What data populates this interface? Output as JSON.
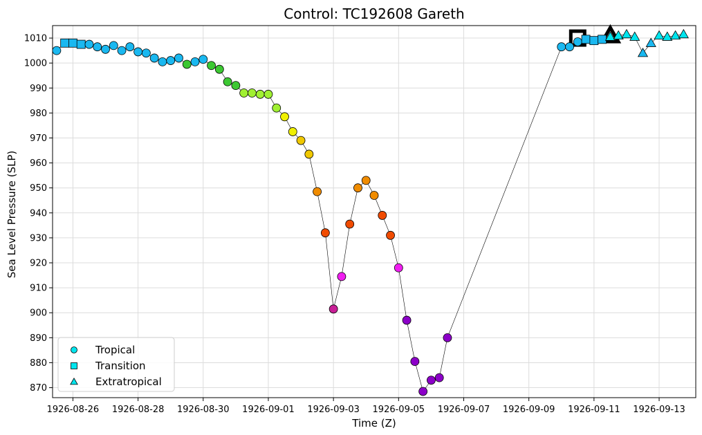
{
  "chart_data": {
    "type": "scatter",
    "title": "Control: TC192608 Gareth",
    "xlabel": "Time (Z)",
    "ylabel": "Sea Level Pressure (SLP)",
    "x_type": "date",
    "xlim": [
      "1926-08-25 09:00",
      "1926-09-14 03:00"
    ],
    "ylim": [
      866,
      1015
    ],
    "grid": true,
    "legend_position": "lower-left",
    "x_ticks": [
      "1926-08-26",
      "1926-08-28",
      "1926-08-30",
      "1926-09-01",
      "1926-09-03",
      "1926-09-05",
      "1926-09-07",
      "1926-09-09",
      "1926-09-11",
      "1926-09-13"
    ],
    "y_ticks": [
      870,
      880,
      890,
      900,
      910,
      920,
      930,
      940,
      950,
      960,
      970,
      980,
      990,
      1000,
      1010
    ],
    "legend": [
      {
        "label": "Tropical",
        "marker": "circle",
        "color": "#00e5ee"
      },
      {
        "label": "Transition",
        "marker": "square",
        "color": "#00e5ee"
      },
      {
        "label": "Extratropical",
        "marker": "triangle",
        "color": "#00e5ee"
      }
    ],
    "highlights": [
      {
        "x": "1926-09-10 12:00",
        "y": 1010,
        "marker": "square"
      },
      {
        "x": "1926-09-11 12:00",
        "y": 1011,
        "marker": "triangle"
      }
    ],
    "points": [
      {
        "x": "1926-08-25 12:00",
        "y": 1005,
        "marker": "circle",
        "color": "#1ab8f0"
      },
      {
        "x": "1926-08-25 18:00",
        "y": 1008,
        "marker": "square",
        "color": "#1ab8f0"
      },
      {
        "x": "1926-08-26 00:00",
        "y": 1008,
        "marker": "square",
        "color": "#1ab8f0"
      },
      {
        "x": "1926-08-26 06:00",
        "y": 1007.5,
        "marker": "square",
        "color": "#1ab8f0"
      },
      {
        "x": "1926-08-26 12:00",
        "y": 1007.5,
        "marker": "circle",
        "color": "#1ab8f0"
      },
      {
        "x": "1926-08-26 18:00",
        "y": 1006.5,
        "marker": "circle",
        "color": "#1ab8f0"
      },
      {
        "x": "1926-08-27 00:00",
        "y": 1005.5,
        "marker": "circle",
        "color": "#1ab8f0"
      },
      {
        "x": "1926-08-27 06:00",
        "y": 1007,
        "marker": "circle",
        "color": "#1ab8f0"
      },
      {
        "x": "1926-08-27 12:00",
        "y": 1005,
        "marker": "circle",
        "color": "#1ab8f0"
      },
      {
        "x": "1926-08-27 18:00",
        "y": 1006.5,
        "marker": "circle",
        "color": "#1ab8f0"
      },
      {
        "x": "1926-08-28 00:00",
        "y": 1004.5,
        "marker": "circle",
        "color": "#1ab8f0"
      },
      {
        "x": "1926-08-28 06:00",
        "y": 1004,
        "marker": "circle",
        "color": "#1ab8f0"
      },
      {
        "x": "1926-08-28 12:00",
        "y": 1002,
        "marker": "circle",
        "color": "#1ab8f0"
      },
      {
        "x": "1926-08-28 18:00",
        "y": 1000.5,
        "marker": "circle",
        "color": "#1ab8f0"
      },
      {
        "x": "1926-08-29 00:00",
        "y": 1001,
        "marker": "circle",
        "color": "#1ab8f0"
      },
      {
        "x": "1926-08-29 06:00",
        "y": 1002,
        "marker": "circle",
        "color": "#1ab8f0"
      },
      {
        "x": "1926-08-29 12:00",
        "y": 999.5,
        "marker": "circle",
        "color": "#3cc832"
      },
      {
        "x": "1926-08-29 18:00",
        "y": 1000.5,
        "marker": "circle",
        "color": "#1ab8f0"
      },
      {
        "x": "1926-08-30 00:00",
        "y": 1001.5,
        "marker": "circle",
        "color": "#1ab8f0"
      },
      {
        "x": "1926-08-30 06:00",
        "y": 999,
        "marker": "circle",
        "color": "#3cc832"
      },
      {
        "x": "1926-08-30 12:00",
        "y": 997.5,
        "marker": "circle",
        "color": "#3cc832"
      },
      {
        "x": "1926-08-30 18:00",
        "y": 992.5,
        "marker": "circle",
        "color": "#3cc832"
      },
      {
        "x": "1926-08-31 00:00",
        "y": 991,
        "marker": "circle",
        "color": "#3cc832"
      },
      {
        "x": "1926-08-31 06:00",
        "y": 988,
        "marker": "circle",
        "color": "#a0f032"
      },
      {
        "x": "1926-08-31 12:00",
        "y": 988,
        "marker": "circle",
        "color": "#a0f032"
      },
      {
        "x": "1926-08-31 18:00",
        "y": 987.5,
        "marker": "circle",
        "color": "#a0f032"
      },
      {
        "x": "1926-09-01 00:00",
        "y": 987.5,
        "marker": "circle",
        "color": "#a0f032"
      },
      {
        "x": "1926-09-01 06:00",
        "y": 982,
        "marker": "circle",
        "color": "#a0f032"
      },
      {
        "x": "1926-09-01 12:00",
        "y": 978.5,
        "marker": "circle",
        "color": "#f0f000"
      },
      {
        "x": "1926-09-01 18:00",
        "y": 972.5,
        "marker": "circle",
        "color": "#f0f000"
      },
      {
        "x": "1926-09-02 00:00",
        "y": 969,
        "marker": "circle",
        "color": "#f0c800"
      },
      {
        "x": "1926-09-02 06:00",
        "y": 963.5,
        "marker": "circle",
        "color": "#f0c800"
      },
      {
        "x": "1926-09-02 12:00",
        "y": 948.5,
        "marker": "circle",
        "color": "#f08c00"
      },
      {
        "x": "1926-09-02 18:00",
        "y": 932,
        "marker": "circle",
        "color": "#f04b00"
      },
      {
        "x": "1926-09-03 00:00",
        "y": 901.5,
        "marker": "circle",
        "color": "#c81e96"
      },
      {
        "x": "1926-09-03 06:00",
        "y": 914.5,
        "marker": "circle",
        "color": "#f01ef0"
      },
      {
        "x": "1926-09-03 12:00",
        "y": 935.5,
        "marker": "circle",
        "color": "#f04b00"
      },
      {
        "x": "1926-09-03 18:00",
        "y": 950,
        "marker": "circle",
        "color": "#f08c00"
      },
      {
        "x": "1926-09-04 00:00",
        "y": 953,
        "marker": "circle",
        "color": "#f08c00"
      },
      {
        "x": "1926-09-04 06:00",
        "y": 947,
        "marker": "circle",
        "color": "#f08c00"
      },
      {
        "x": "1926-09-04 12:00",
        "y": 939,
        "marker": "circle",
        "color": "#f04b00"
      },
      {
        "x": "1926-09-04 18:00",
        "y": 931,
        "marker": "circle",
        "color": "#f04b00"
      },
      {
        "x": "1926-09-05 00:00",
        "y": 918,
        "marker": "circle",
        "color": "#f01ef0"
      },
      {
        "x": "1926-09-05 06:00",
        "y": 897,
        "marker": "circle",
        "color": "#8c00c8"
      },
      {
        "x": "1926-09-05 12:00",
        "y": 880.5,
        "marker": "circle",
        "color": "#8c00c8"
      },
      {
        "x": "1926-09-05 18:00",
        "y": 868.5,
        "marker": "circle",
        "color": "#8c00c8"
      },
      {
        "x": "1926-09-06 00:00",
        "y": 873,
        "marker": "circle",
        "color": "#8c00c8"
      },
      {
        "x": "1926-09-06 06:00",
        "y": 874,
        "marker": "circle",
        "color": "#8c00c8"
      },
      {
        "x": "1926-09-06 12:00",
        "y": 890,
        "marker": "circle",
        "color": "#8c00c8"
      },
      {
        "x": "1926-09-10 00:00",
        "y": 1006.5,
        "marker": "circle",
        "color": "#1ab8f0"
      },
      {
        "x": "1926-09-10 06:00",
        "y": 1006.5,
        "marker": "circle",
        "color": "#1ab8f0"
      },
      {
        "x": "1926-09-10 12:00",
        "y": 1008.5,
        "marker": "circle",
        "color": "#1ab8f0"
      },
      {
        "x": "1926-09-10 18:00",
        "y": 1009.5,
        "marker": "square",
        "color": "#1ab8f0"
      },
      {
        "x": "1926-09-11 00:00",
        "y": 1009,
        "marker": "square",
        "color": "#1ab8f0"
      },
      {
        "x": "1926-09-11 06:00",
        "y": 1009.5,
        "marker": "square",
        "color": "#1ab8f0"
      },
      {
        "x": "1926-09-11 12:00",
        "y": 1010.5,
        "marker": "triangle",
        "color": "#00e5ee"
      },
      {
        "x": "1926-09-11 18:00",
        "y": 1011,
        "marker": "triangle",
        "color": "#00e5ee"
      },
      {
        "x": "1926-09-12 00:00",
        "y": 1011.5,
        "marker": "triangle",
        "color": "#00e5ee"
      },
      {
        "x": "1926-09-12 06:00",
        "y": 1010.5,
        "marker": "triangle",
        "color": "#00e5ee"
      },
      {
        "x": "1926-09-12 12:00",
        "y": 1004,
        "marker": "triangle",
        "color": "#1ab8f0"
      },
      {
        "x": "1926-09-12 18:00",
        "y": 1008,
        "marker": "triangle",
        "color": "#1ab8f0"
      },
      {
        "x": "1926-09-13 00:00",
        "y": 1011,
        "marker": "triangle",
        "color": "#00e5ee"
      },
      {
        "x": "1926-09-13 06:00",
        "y": 1010.5,
        "marker": "triangle",
        "color": "#00e5ee"
      },
      {
        "x": "1926-09-13 12:00",
        "y": 1011,
        "marker": "triangle",
        "color": "#00e5ee"
      },
      {
        "x": "1926-09-13 18:00",
        "y": 1011.5,
        "marker": "triangle",
        "color": "#00e5ee"
      }
    ]
  }
}
